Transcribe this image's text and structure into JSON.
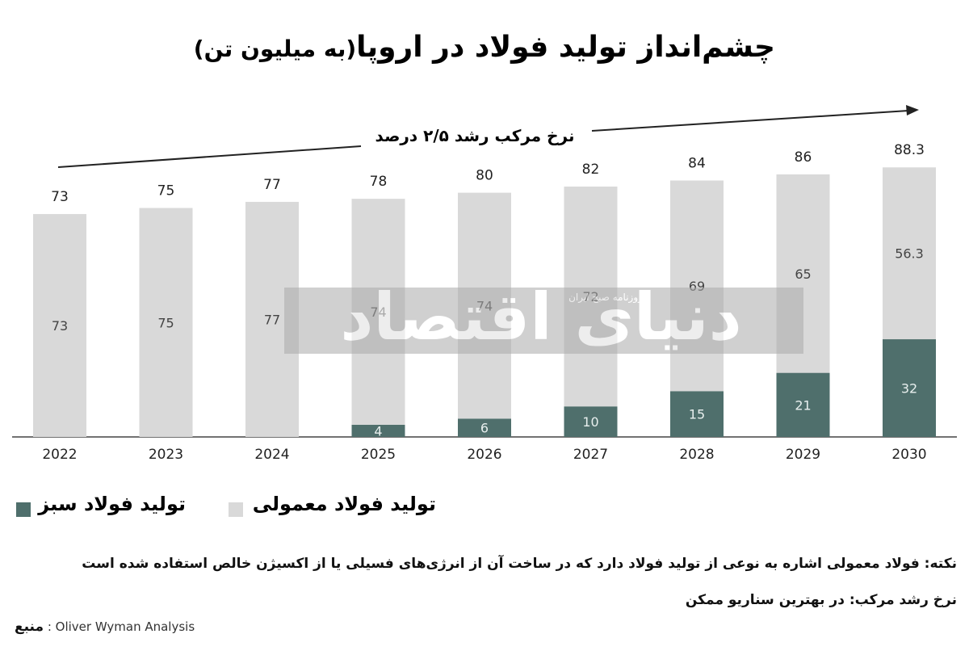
{
  "chart_data": {
    "type": "stacked-bar",
    "title": "چشم‌انداز تولید فولاد در اروپا",
    "subtitle": "(به میلیون تن)",
    "annotation": "نرخ مرکب رشد ۲/۵ درصد",
    "categories": [
      "2022",
      "2023",
      "2024",
      "2025",
      "2026",
      "2027",
      "2028",
      "2029",
      "2030"
    ],
    "series": [
      {
        "name": "تولید فولاد سبز",
        "color": "#4f6f6c",
        "values": [
          null,
          null,
          null,
          4,
          6,
          10,
          15,
          21,
          32
        ]
      },
      {
        "name": "تولید فولاد معمولی",
        "color": "#d9d9d9",
        "values": [
          73,
          75,
          77,
          74,
          74,
          72,
          69,
          65,
          56.3
        ]
      }
    ],
    "totals": [
      73,
      75,
      77,
      78,
      80,
      82,
      84,
      86,
      88.3
    ],
    "watermark": {
      "brand": "دنیای اقتصاد",
      "tagline": "روزنامه صبح ایران"
    }
  },
  "notes": [
    "نکته: فولاد معمولی اشاره به نوعی از تولید فولاد دارد که در ساخت آن از انرژی‌های فسیلی یا از اکسیژن خالص استفاده شده است",
    "نرخ رشد مرکب: در بهترین سناریو ممکن"
  ],
  "source": {
    "label": "منبع",
    "text": ": Oliver Wyman Analysis"
  }
}
